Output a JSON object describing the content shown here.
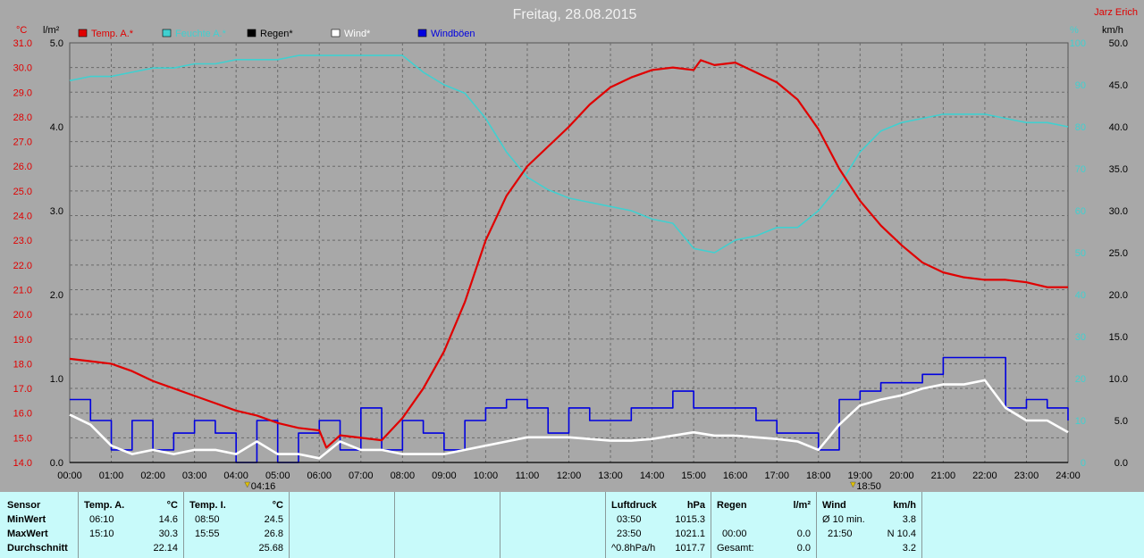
{
  "title": "Freitag, 28.08.2015",
  "author": "Jarz Erich",
  "colors": {
    "temp": "#e00000",
    "humidity": "#40d0d0",
    "rain": "#000000",
    "wind": "#ffffff",
    "gust": "#0000e0",
    "background": "#a8a8a8",
    "stats_bg": "#c8fafa"
  },
  "axes": {
    "left_temp": {
      "unit": "°C",
      "min": 14.0,
      "max": 31.0,
      "step": 1.0,
      "ticks": [
        "14.0",
        "15.0",
        "16.0",
        "17.0",
        "18.0",
        "19.0",
        "20.0",
        "21.0",
        "22.0",
        "23.0",
        "24.0",
        "25.0",
        "26.0",
        "27.0",
        "28.0",
        "29.0",
        "30.0",
        "31.0"
      ]
    },
    "left_rain": {
      "unit": "l/m²",
      "min": 0.0,
      "max": 5.0,
      "ticks": [
        "0.0",
        "1.0",
        "2.0",
        "3.0",
        "4.0",
        "5.0"
      ]
    },
    "right_humidity": {
      "unit": "%",
      "min": 0,
      "max": 100,
      "ticks": [
        "0",
        "10",
        "20",
        "30",
        "40",
        "50",
        "60",
        "70",
        "80",
        "90",
        "100"
      ]
    },
    "right_wind": {
      "unit": "km/h",
      "min": 0,
      "max": 50,
      "ticks": [
        "0.0",
        "5.0",
        "10.0",
        "15.0",
        "20.0",
        "25.0",
        "30.0",
        "35.0",
        "40.0",
        "45.0",
        "50.0"
      ]
    },
    "x_ticks": [
      "00:00",
      "01:00",
      "02:00",
      "03:00",
      "04:00",
      "05:00",
      "06:00",
      "07:00",
      "08:00",
      "09:00",
      "10:00",
      "11:00",
      "12:00",
      "13:00",
      "14:00",
      "15:00",
      "16:00",
      "17:00",
      "18:00",
      "19:00",
      "20:00",
      "21:00",
      "22:00",
      "23:00",
      "24:00"
    ]
  },
  "legend": [
    {
      "label": "Temp. A.*",
      "color": "#e00000"
    },
    {
      "label": "Feuchte A.*",
      "color": "#40d0d0"
    },
    {
      "label": "Regen*",
      "color": "#000000"
    },
    {
      "label": "Wind*",
      "color": "#ffffff"
    },
    {
      "label": "Windböen",
      "color": "#0000e0"
    }
  ],
  "markers": [
    {
      "time": "04:16",
      "hour": 4.27
    },
    {
      "time": "18:50",
      "hour": 18.83
    }
  ],
  "chart_data": {
    "type": "line",
    "x_unit": "hour",
    "xlim": [
      0,
      24
    ],
    "grid": true,
    "legend_position": "top-left",
    "series": [
      {
        "name": "Temp. A.*",
        "axis": "left_temp",
        "x": [
          0,
          0.5,
          1,
          1.5,
          2,
          2.5,
          3,
          3.5,
          4,
          4.5,
          5,
          5.5,
          6,
          6.17,
          6.5,
          7,
          7.5,
          8,
          8.5,
          9,
          9.5,
          10,
          10.5,
          11,
          11.5,
          12,
          12.5,
          13,
          13.5,
          14,
          14.5,
          15,
          15.17,
          15.5,
          16,
          16.5,
          17,
          17.5,
          18,
          18.5,
          19,
          19.5,
          20,
          20.5,
          21,
          21.5,
          22,
          22.5,
          23,
          23.5,
          24
        ],
        "values": [
          18.2,
          18.1,
          18.0,
          17.7,
          17.3,
          17.0,
          16.7,
          16.4,
          16.1,
          15.9,
          15.6,
          15.4,
          15.3,
          14.6,
          15.1,
          15.0,
          14.9,
          15.8,
          17.0,
          18.5,
          20.5,
          23.0,
          24.8,
          26.0,
          26.8,
          27.6,
          28.5,
          29.2,
          29.6,
          29.9,
          30.0,
          29.9,
          30.3,
          30.1,
          30.2,
          29.8,
          29.4,
          28.7,
          27.5,
          25.9,
          24.6,
          23.6,
          22.8,
          22.1,
          21.7,
          21.5,
          21.4,
          21.4,
          21.3,
          21.1,
          21.1
        ]
      },
      {
        "name": "Feuchte A.*",
        "axis": "right_humidity",
        "x": [
          0,
          0.5,
          1,
          1.5,
          2,
          2.5,
          3,
          3.5,
          4,
          4.5,
          5,
          5.5,
          6,
          6.5,
          7,
          7.5,
          8,
          8.5,
          9,
          9.5,
          10,
          10.5,
          11,
          11.5,
          12,
          12.5,
          13,
          13.5,
          14,
          14.5,
          15,
          15.5,
          16,
          16.5,
          17,
          17.5,
          18,
          18.5,
          19,
          19.5,
          20,
          20.5,
          21,
          21.5,
          22,
          22.5,
          23,
          23.5,
          24
        ],
        "values": [
          91,
          92,
          92,
          93,
          94,
          94,
          95,
          95,
          96,
          96,
          96,
          97,
          97,
          97,
          97,
          97,
          97,
          93,
          90,
          88,
          82,
          74,
          68,
          65,
          63,
          62,
          61,
          60,
          58,
          57,
          51,
          50,
          53,
          54,
          56,
          56,
          60,
          66,
          74,
          79,
          81,
          82,
          83,
          83,
          83,
          82,
          81,
          81,
          80
        ]
      },
      {
        "name": "Wind*",
        "axis": "right_wind",
        "x": [
          0,
          0.5,
          1,
          1.5,
          2,
          2.5,
          3,
          3.5,
          4,
          4.5,
          5,
          5.5,
          6,
          6.5,
          7,
          7.5,
          8,
          8.5,
          9,
          9.5,
          10,
          10.5,
          11,
          11.5,
          12,
          12.5,
          13,
          13.5,
          14,
          14.5,
          15,
          15.5,
          16,
          16.5,
          17,
          17.5,
          18,
          18.5,
          19,
          19.5,
          20,
          20.5,
          21,
          21.5,
          22,
          22.5,
          23,
          23.5,
          24
        ],
        "values": [
          5.7,
          4.5,
          2.0,
          1.0,
          1.5,
          1.0,
          1.5,
          1.5,
          1.0,
          2.5,
          1.0,
          1.0,
          0.5,
          2.5,
          1.5,
          1.5,
          1.0,
          1.0,
          1.0,
          1.5,
          2.0,
          2.5,
          3.0,
          3.0,
          3.0,
          2.8,
          2.6,
          2.6,
          2.8,
          3.2,
          3.6,
          3.2,
          3.2,
          3.0,
          2.8,
          2.5,
          1.5,
          4.5,
          6.8,
          7.5,
          8.0,
          8.8,
          9.3,
          9.3,
          9.8,
          6.5,
          5.0,
          5.0,
          3.6
        ]
      },
      {
        "name": "Windböen",
        "axis": "right_wind",
        "step": true,
        "x": [
          0,
          0.5,
          1,
          1.5,
          2,
          2.5,
          3,
          3.5,
          4,
          4.5,
          5,
          5.5,
          6,
          6.5,
          7,
          7.5,
          8,
          8.5,
          9,
          9.5,
          10,
          10.5,
          11,
          11.5,
          12,
          12.5,
          13,
          13.5,
          14,
          14.5,
          15,
          15.5,
          16,
          16.5,
          17,
          17.5,
          18,
          18.5,
          19,
          19.5,
          20,
          20.5,
          21,
          21.5,
          22,
          22.5,
          23,
          23.5,
          24
        ],
        "values": [
          7.5,
          5.0,
          1.5,
          5.0,
          1.5,
          3.5,
          5.0,
          3.5,
          0.0,
          5.0,
          0.0,
          3.5,
          5.0,
          1.5,
          6.5,
          1.5,
          5.0,
          3.5,
          1.5,
          5.0,
          6.5,
          7.5,
          6.5,
          3.5,
          6.5,
          5.0,
          5.0,
          6.5,
          6.5,
          8.5,
          6.5,
          6.5,
          6.5,
          5.0,
          3.5,
          3.5,
          1.5,
          7.5,
          8.5,
          9.5,
          9.5,
          10.5,
          12.5,
          12.5,
          12.5,
          6.5,
          7.5,
          6.5,
          5.0
        ]
      },
      {
        "name": "Regen*",
        "axis": "left_rain",
        "x": [
          0,
          24
        ],
        "values": [
          0.0,
          0.0
        ]
      }
    ]
  },
  "stats": {
    "sensor": {
      "header": "Sensor",
      "rows": [
        "MinWert",
        "MaxWert",
        "Durchschnitt"
      ]
    },
    "temp_a": {
      "header": "Temp. A.",
      "unit": "°C",
      "rows": [
        {
          "time": "06:10",
          "value": "14.6"
        },
        {
          "time": "15:10",
          "value": "30.3"
        },
        {
          "time": "",
          "value": "22.14"
        }
      ]
    },
    "temp_i": {
      "header": "Temp. I.",
      "unit": "°C",
      "rows": [
        {
          "time": "08:50",
          "value": "24.5"
        },
        {
          "time": "15:55",
          "value": "26.8"
        },
        {
          "time": "",
          "value": "25.68"
        }
      ]
    },
    "pressure": {
      "header": "Luftdruck",
      "unit": "hPa",
      "rows": [
        {
          "time": "03:50",
          "value": "1015.3"
        },
        {
          "time": "23:50",
          "value": "1021.1"
        },
        {
          "time": "^0.8hPa/h",
          "value": "1017.7"
        }
      ]
    },
    "rain": {
      "header": "Regen",
      "unit": "l/m²",
      "rows": [
        {
          "time": "",
          "value": ""
        },
        {
          "time": "00:00",
          "value": "0.0"
        },
        {
          "time": "Gesamt:",
          "value": "0.0"
        }
      ]
    },
    "wind": {
      "header": "Wind",
      "unit": "km/h",
      "rows": [
        {
          "time": "Ø 10 min.",
          "value": "3.8"
        },
        {
          "time": "21:50",
          "value": "N 10.4"
        },
        {
          "time": "",
          "value": "3.2"
        }
      ]
    }
  }
}
